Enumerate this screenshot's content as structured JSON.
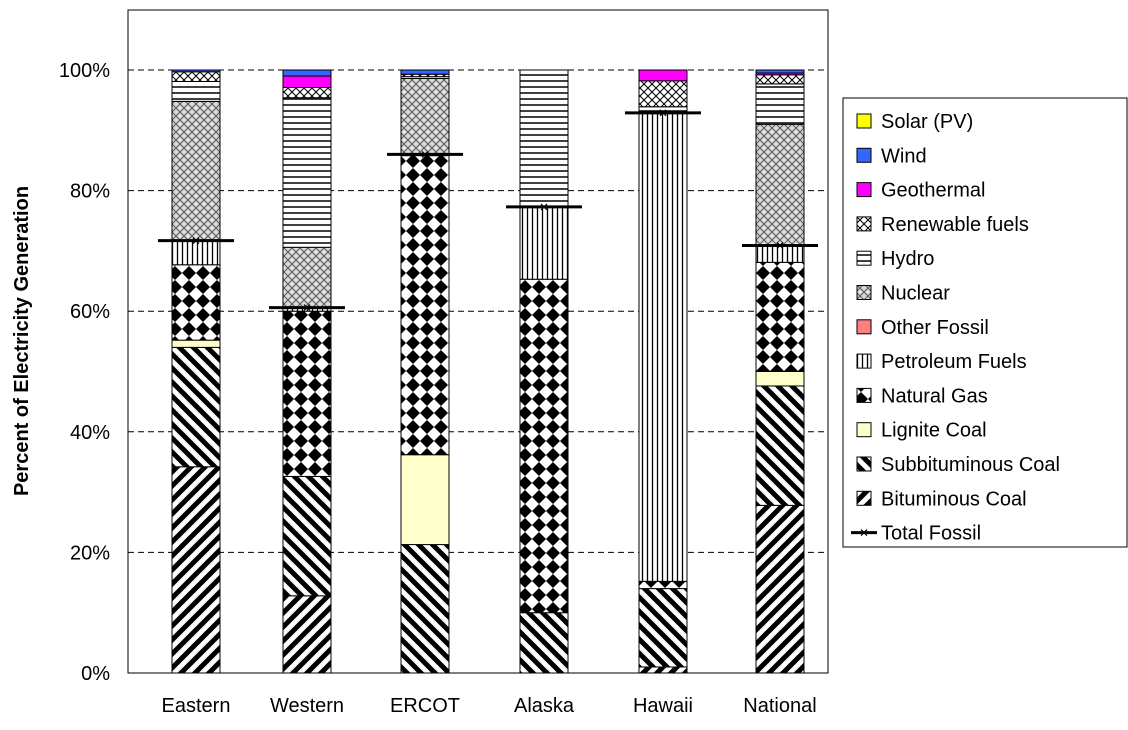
{
  "chart_data": {
    "type": "bar",
    "stacked": true,
    "title": "",
    "xlabel": "",
    "ylabel": "Percent of Electricity Generation",
    "ylim": [
      0,
      100
    ],
    "y_ticks": [
      "0%",
      "20%",
      "40%",
      "60%",
      "80%",
      "100%"
    ],
    "grid": "horizontal-dashed",
    "legend_position": "right",
    "categories": [
      "Eastern",
      "Western",
      "ERCOT",
      "Alaska",
      "Hawaii",
      "National"
    ],
    "series": [
      {
        "name": "Bituminous Coal",
        "pattern": "diag-down",
        "values": [
          34.2,
          12.8,
          0,
          0,
          1.0,
          27.8
        ]
      },
      {
        "name": "Subbituminous Coal",
        "pattern": "diag-up",
        "values": [
          19.8,
          19.8,
          21.3,
          10.0,
          13.0,
          19.8
        ]
      },
      {
        "name": "Lignite Coal",
        "pattern": "solid",
        "color": "#ffffcc",
        "values": [
          1.2,
          0,
          14.9,
          0,
          0,
          2.4
        ]
      },
      {
        "name": "Natural Gas",
        "pattern": "diamond",
        "values": [
          12.5,
          27.4,
          49.6,
          55.3,
          1.2,
          18.1
        ]
      },
      {
        "name": "Petroleum Fuels",
        "pattern": "vertical",
        "values": [
          4.0,
          0.6,
          0.2,
          12.0,
          77.7,
          2.8
        ]
      },
      {
        "name": "Other Fossil",
        "pattern": "solid",
        "color": "#ff8080",
        "values": [
          0,
          0,
          0,
          0,
          0,
          0
        ]
      },
      {
        "name": "Nuclear",
        "pattern": "weave",
        "values": [
          23.1,
          10.0,
          12.6,
          0,
          0,
          20.1
        ]
      },
      {
        "name": "Hydro",
        "pattern": "horizontal",
        "values": [
          3.3,
          24.8,
          0.3,
          22.7,
          1.0,
          6.7
        ]
      },
      {
        "name": "Renewable fuels",
        "pattern": "cross",
        "values": [
          1.6,
          1.7,
          0.4,
          0,
          4.3,
          1.5
        ]
      },
      {
        "name": "Geothermal",
        "pattern": "solid",
        "color": "#ff00ff",
        "values": [
          0,
          1.9,
          0,
          0,
          1.8,
          0.3
        ]
      },
      {
        "name": "Wind",
        "pattern": "solid",
        "color": "#3366ff",
        "values": [
          0.3,
          1.0,
          0.7,
          0,
          0,
          0.5
        ]
      },
      {
        "name": "Solar (PV)",
        "pattern": "solid",
        "color": "#ffff00",
        "values": [
          0,
          0,
          0,
          0,
          0,
          0
        ]
      }
    ],
    "line_series": {
      "name": "Total Fossil",
      "values": [
        71.7,
        60.6,
        86.0,
        77.3,
        92.9,
        70.9
      ]
    },
    "legend_order": [
      "Solar (PV)",
      "Wind",
      "Geothermal",
      "Renewable fuels",
      "Hydro",
      "Nuclear",
      "Other Fossil",
      "Petroleum Fuels",
      "Natural Gas",
      "Lignite Coal",
      "Subbituminous Coal",
      "Bituminous Coal",
      "Total Fossil"
    ]
  }
}
